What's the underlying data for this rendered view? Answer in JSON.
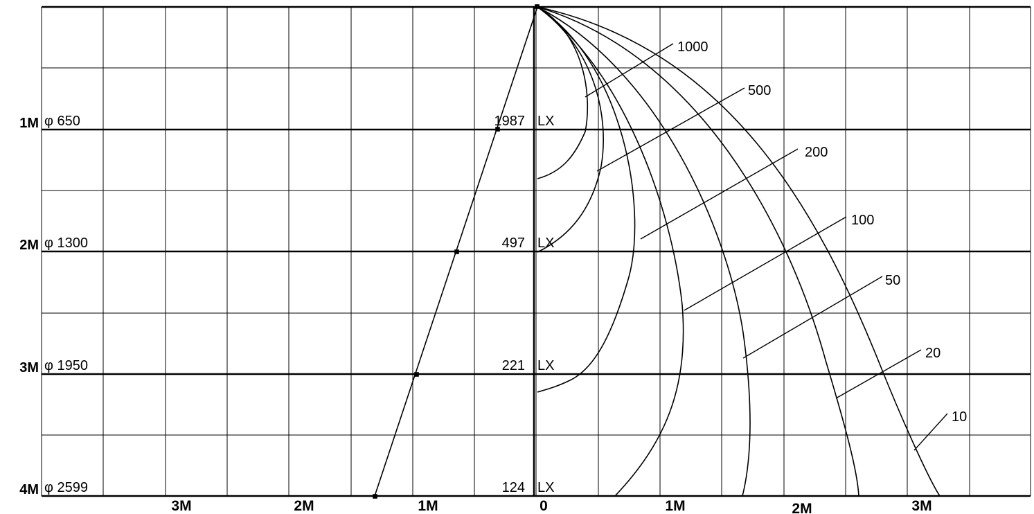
{
  "y_axis_labels": [
    "1M",
    "2M",
    "3M",
    "4M"
  ],
  "diameter_labels": [
    "φ 650",
    "φ 1300",
    "φ 1950",
    "φ 2599"
  ],
  "lux_values": [
    "1987",
    "497",
    "221",
    "124"
  ],
  "lux_unit": "LX",
  "x_axis_labels": [
    "3M",
    "2M",
    "1M",
    "0",
    "1M",
    "2M",
    "3M"
  ],
  "isolux_labels": [
    "1000",
    "500",
    "200",
    "100",
    "50",
    "20",
    "10"
  ],
  "chart_data": {
    "type": "isolux-diagram",
    "distance_levels_m": [
      1,
      2,
      3,
      4
    ],
    "beam_diameter_mm": [
      650,
      1300,
      1950,
      2599
    ],
    "center_illuminance_lx": [
      1987,
      497,
      221,
      124
    ],
    "isolux_levels_lx": [
      1000,
      500,
      200,
      100,
      50,
      20,
      10
    ],
    "grid": true
  }
}
